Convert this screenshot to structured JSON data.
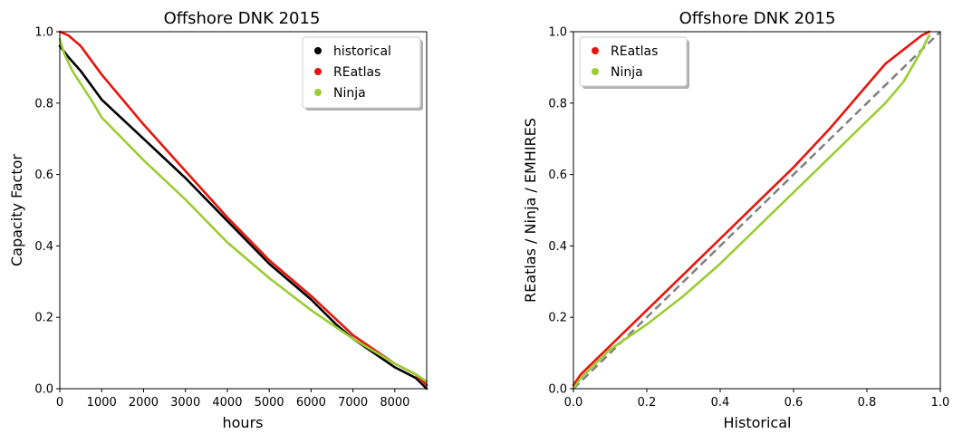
{
  "chart_data": [
    {
      "type": "line",
      "title": "Offshore DNK 2015",
      "xlabel": "hours",
      "ylabel": "Capacity Factor",
      "xlim": [
        0,
        8760
      ],
      "ylim": [
        0,
        1.0
      ],
      "xticks": [
        0,
        1000,
        2000,
        3000,
        4000,
        5000,
        6000,
        7000,
        8000
      ],
      "xtick_labels": [
        "0",
        "1000",
        "2000",
        "3000",
        "4000",
        "5000",
        "6000",
        "7000",
        "8000"
      ],
      "yticks": [
        0,
        0.2,
        0.4,
        0.6,
        0.8,
        1.0
      ],
      "ytick_labels": [
        "0.0",
        "0.2",
        "0.4",
        "0.6",
        "0.8",
        "1.0"
      ],
      "grid": false,
      "legend_position": "top-right",
      "series": [
        {
          "name": "historical",
          "color": "#000000",
          "x": [
            0,
            200,
            500,
            1000,
            2000,
            3000,
            4000,
            5000,
            6000,
            6600,
            7000,
            7500,
            8000,
            8500,
            8760
          ],
          "y": [
            0.96,
            0.93,
            0.89,
            0.81,
            0.7,
            0.59,
            0.47,
            0.35,
            0.25,
            0.18,
            0.14,
            0.1,
            0.06,
            0.03,
            0.0
          ]
        },
        {
          "name": "REatlas",
          "color": "#e8140c",
          "x": [
            0,
            200,
            500,
            1000,
            2000,
            3000,
            4000,
            5000,
            6000,
            7000,
            7500,
            8000,
            8500,
            8760
          ],
          "y": [
            1.0,
            0.99,
            0.96,
            0.88,
            0.74,
            0.61,
            0.48,
            0.36,
            0.26,
            0.15,
            0.11,
            0.07,
            0.04,
            0.01
          ]
        },
        {
          "name": "Ninja",
          "color": "#9acd32",
          "x": [
            0,
            100,
            300,
            800,
            1000,
            2000,
            3000,
            4000,
            5000,
            6000,
            7000,
            8000,
            8500,
            8760
          ],
          "y": [
            0.98,
            0.94,
            0.89,
            0.8,
            0.76,
            0.64,
            0.53,
            0.41,
            0.31,
            0.22,
            0.14,
            0.07,
            0.04,
            0.02
          ]
        }
      ]
    },
    {
      "type": "line",
      "title": "Offshore DNK 2015",
      "xlabel": "Historical",
      "ylabel": "REatlas / Ninja / EMHIRES",
      "xlim": [
        0,
        1.0
      ],
      "ylim": [
        0,
        1.0
      ],
      "xticks": [
        0,
        0.2,
        0.4,
        0.6,
        0.8,
        1.0
      ],
      "xtick_labels": [
        "0.0",
        "0.2",
        "0.4",
        "0.6",
        "0.8",
        "1.0"
      ],
      "yticks": [
        0,
        0.2,
        0.4,
        0.6,
        0.8,
        1.0
      ],
      "ytick_labels": [
        "0.0",
        "0.2",
        "0.4",
        "0.6",
        "0.8",
        "1.0"
      ],
      "grid": false,
      "legend_position": "top-left",
      "reference_line": {
        "x": [
          0,
          1.0
        ],
        "y": [
          0,
          1.0
        ],
        "color": "#808080",
        "style": "dashed"
      },
      "series": [
        {
          "name": "REatlas",
          "color": "#e8140c",
          "x": [
            0,
            0.02,
            0.1,
            0.2,
            0.3,
            0.4,
            0.5,
            0.6,
            0.7,
            0.8,
            0.85,
            0.9,
            0.95,
            0.97
          ],
          "y": [
            0.01,
            0.04,
            0.12,
            0.22,
            0.32,
            0.42,
            0.52,
            0.62,
            0.73,
            0.85,
            0.91,
            0.95,
            0.99,
            1.0
          ]
        },
        {
          "name": "Ninja",
          "color": "#9acd32",
          "x": [
            0,
            0.02,
            0.1,
            0.2,
            0.3,
            0.4,
            0.5,
            0.6,
            0.7,
            0.8,
            0.85,
            0.9,
            0.95,
            0.97
          ],
          "y": [
            0.0,
            0.03,
            0.11,
            0.18,
            0.26,
            0.35,
            0.45,
            0.55,
            0.65,
            0.75,
            0.8,
            0.86,
            0.95,
            0.99
          ]
        }
      ]
    }
  ]
}
